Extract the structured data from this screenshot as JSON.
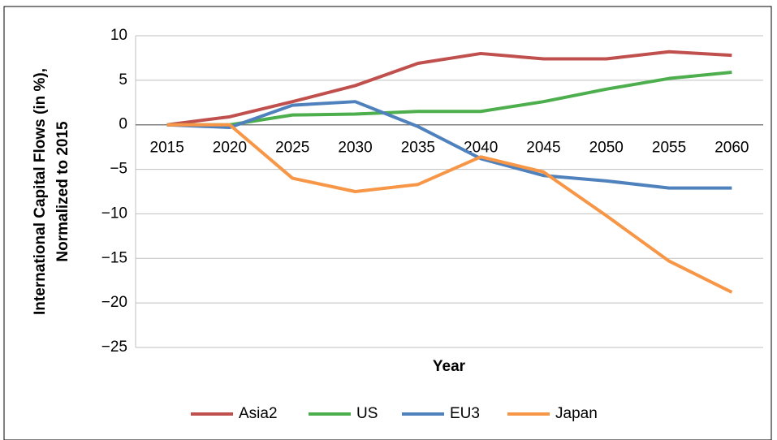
{
  "chart_data": {
    "type": "line",
    "ylabel": [
      "International Capital Flows (in %),",
      "Normalized to 2015"
    ],
    "xlabel": "Year",
    "categories": [
      "2015",
      "2020",
      "2025",
      "2030",
      "2035",
      "2040",
      "2045",
      "2050",
      "2055",
      "2060"
    ],
    "series": [
      {
        "name": "Asia2",
        "color": "#c0504d",
        "values": [
          0,
          0.9,
          2.6,
          4.4,
          6.9,
          8.0,
          7.4,
          7.4,
          8.2,
          7.8
        ]
      },
      {
        "name": "US",
        "color": "#4cae4c",
        "values": [
          0,
          0,
          1.1,
          1.2,
          1.5,
          1.5,
          2.6,
          4.0,
          5.2,
          5.9
        ]
      },
      {
        "name": "EU3",
        "color": "#4f81bd",
        "values": [
          0,
          -0.3,
          2.2,
          2.6,
          -0.2,
          -3.8,
          -5.7,
          -6.3,
          -7.1,
          -7.1
        ]
      },
      {
        "name": "Japan",
        "color": "#f79646",
        "values": [
          0,
          0,
          -6.0,
          -7.5,
          -6.7,
          -3.6,
          -5.3,
          -10.2,
          -15.3,
          -18.8
        ]
      }
    ],
    "ylim": [
      -25,
      10
    ],
    "yticks": [
      {
        "value": -25,
        "label": "−25"
      },
      {
        "value": -20,
        "label": "−20"
      },
      {
        "value": -15,
        "label": "−15"
      },
      {
        "value": -10,
        "label": "−10"
      },
      {
        "value": -5,
        "label": "−5"
      },
      0,
      5,
      10
    ],
    "grid": true,
    "legend": "bottom"
  }
}
